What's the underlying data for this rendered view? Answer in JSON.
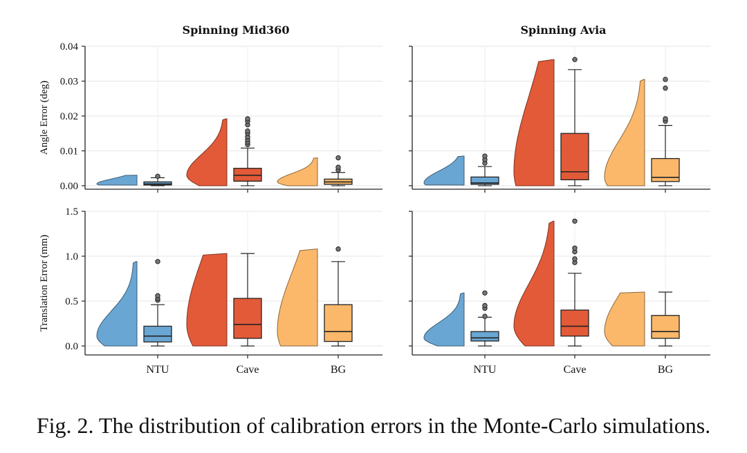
{
  "caption": "Fig. 2.  The distribution of calibration errors in the Monte-Carlo simulations.",
  "chart_data": {
    "type": "raincloud",
    "categories": [
      "NTU",
      "Cave",
      "BG"
    ],
    "colors": {
      "NTU": "#6aa6d3",
      "Cave": "#e25a38",
      "BG": "#fbb86b"
    },
    "columns": [
      {
        "title": "Spinning Mid360",
        "key": "mid360"
      },
      {
        "title": "Spinning Avia",
        "key": "avia"
      }
    ],
    "rows": [
      {
        "key": "angle",
        "ylabel": "Angle Error (deg)",
        "ylim": [
          -0.001,
          0.04
        ],
        "yticks": [
          0.0,
          0.01,
          0.02,
          0.03,
          0.04
        ],
        "yticklabels": [
          "0.00",
          "0.01",
          "0.02",
          "0.03",
          "0.04"
        ]
      },
      {
        "key": "translation",
        "ylabel": "Translation Error (mm)",
        "ylim": [
          -0.1,
          1.5
        ],
        "yticks": [
          0.0,
          0.5,
          1.0,
          1.5
        ],
        "yticklabels": [
          "0.0",
          "0.5",
          "1.0",
          "1.5"
        ]
      }
    ],
    "stats": {
      "angle": {
        "mid360": {
          "NTU": {
            "min": 0.0,
            "q1": 0.0002,
            "median": 0.0005,
            "q3": 0.0011,
            "max": 0.0023,
            "outliers": [
              0.0027
            ],
            "violin": [
              0.0002,
              0.003
            ]
          },
          "Cave": {
            "min": 0.0,
            "q1": 0.0013,
            "median": 0.003,
            "q3": 0.005,
            "max": 0.0108,
            "outliers": [
              0.0118,
              0.0125,
              0.0132,
              0.014,
              0.015,
              0.0157,
              0.0175,
              0.0185,
              0.0192
            ],
            "violin": [
              0.0,
              0.0192
            ]
          },
          "BG": {
            "min": 0.0,
            "q1": 0.0004,
            "median": 0.0011,
            "q3": 0.0019,
            "max": 0.0038,
            "outliers": [
              0.0045,
              0.0053,
              0.008
            ],
            "violin": [
              0.0,
              0.008
            ]
          }
        },
        "avia": {
          "NTU": {
            "min": 0.0,
            "q1": 0.0004,
            "median": 0.0008,
            "q3": 0.0025,
            "max": 0.0055,
            "outliers": [
              0.0065,
              0.0075,
              0.0085
            ],
            "violin": [
              0.0002,
              0.0085
            ]
          },
          "Cave": {
            "min": 0.0,
            "q1": 0.0017,
            "median": 0.004,
            "q3": 0.015,
            "max": 0.0333,
            "outliers": [
              0.0362
            ],
            "violin": [
              0.0,
              0.0362
            ]
          },
          "BG": {
            "min": 0.0,
            "q1": 0.0012,
            "median": 0.0024,
            "q3": 0.0078,
            "max": 0.0173,
            "outliers": [
              0.0185,
              0.0192,
              0.028,
              0.0305
            ],
            "violin": [
              0.0,
              0.0305
            ]
          }
        }
      },
      "translation": {
        "mid360": {
          "NTU": {
            "min": 0.0,
            "q1": 0.045,
            "median": 0.11,
            "q3": 0.22,
            "max": 0.46,
            "outliers": [
              0.51,
              0.53,
              0.56,
              0.94
            ],
            "violin": [
              0.0,
              0.94
            ]
          },
          "Cave": {
            "min": 0.0,
            "q1": 0.085,
            "median": 0.24,
            "q3": 0.53,
            "max": 1.03,
            "outliers": [],
            "violin": [
              0.0,
              1.03
            ]
          },
          "BG": {
            "min": 0.0,
            "q1": 0.05,
            "median": 0.16,
            "q3": 0.46,
            "max": 0.94,
            "outliers": [
              1.08
            ],
            "violin": [
              0.0,
              1.08
            ]
          }
        },
        "avia": {
          "NTU": {
            "min": 0.0,
            "q1": 0.055,
            "median": 0.09,
            "q3": 0.16,
            "max": 0.32,
            "outliers": [
              0.33,
              0.42,
              0.45,
              0.59
            ],
            "violin": [
              0.0,
              0.59
            ]
          },
          "Cave": {
            "min": 0.0,
            "q1": 0.11,
            "median": 0.22,
            "q3": 0.4,
            "max": 0.81,
            "outliers": [
              0.93,
              0.97,
              1.05,
              1.09,
              1.39
            ],
            "violin": [
              0.0,
              1.39
            ]
          },
          "BG": {
            "min": 0.0,
            "q1": 0.085,
            "median": 0.16,
            "q3": 0.34,
            "max": 0.6,
            "outliers": [],
            "violin": [
              0.0,
              0.6
            ]
          }
        }
      }
    },
    "grid": true
  }
}
